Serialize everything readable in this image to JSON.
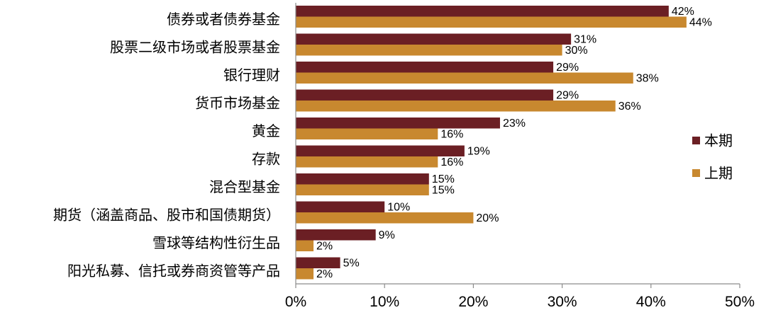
{
  "chart_data": {
    "type": "bar",
    "orientation": "horizontal",
    "categories": [
      "债券或者债券基金",
      "股票二级市场或者股票基金",
      "银行理财",
      "货币市场基金",
      "黄金",
      "存款",
      "混合型基金",
      "期货（涵盖商品、股市和国债期货）",
      "雪球等结构性衍生品",
      "阳光私募、信托或券商资管等产品"
    ],
    "series": [
      {
        "name": "本期",
        "color": "#6B1F24",
        "values": [
          42,
          31,
          29,
          29,
          23,
          19,
          15,
          10,
          9,
          5
        ]
      },
      {
        "name": "上期",
        "color": "#C8882F",
        "values": [
          44,
          30,
          38,
          36,
          16,
          16,
          15,
          20,
          2,
          2
        ]
      }
    ],
    "value_suffix": "%",
    "xlim": [
      0,
      50
    ],
    "xticks": [
      "0%",
      "10%",
      "20%",
      "30%",
      "40%",
      "50%"
    ],
    "xlabel": "",
    "ylabel": "",
    "grid": false,
    "legend_position": "right"
  }
}
